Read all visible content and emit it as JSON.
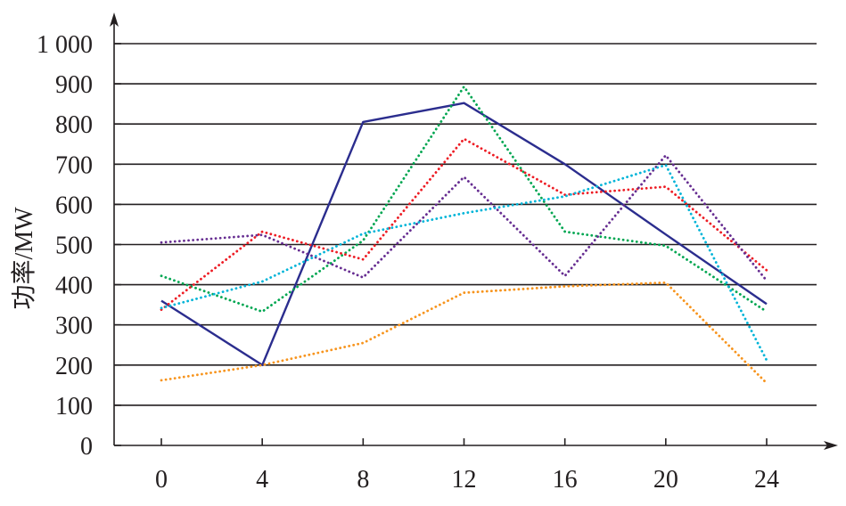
{
  "chart_data": {
    "type": "line",
    "title": "",
    "xlabel": "",
    "ylabel": "功率/MW",
    "x": [
      0,
      4,
      8,
      12,
      16,
      20,
      24
    ],
    "xlim": [
      0,
      24
    ],
    "ylim": [
      0,
      1000
    ],
    "x_ticks": [
      0,
      4,
      8,
      12,
      16,
      20,
      24
    ],
    "x_tick_labels": [
      "0",
      "4",
      "8",
      "12",
      "16",
      "20",
      "24"
    ],
    "y_ticks": [
      0,
      100,
      200,
      300,
      400,
      500,
      600,
      700,
      800,
      900,
      1000
    ],
    "y_tick_labels": [
      "0",
      "100",
      "200",
      "300",
      "400",
      "500",
      "600",
      "700",
      "800",
      "900",
      "1 000"
    ],
    "grid": "horizontal",
    "legend": "none",
    "series": [
      {
        "color": "#2b2d8e",
        "style": "solid",
        "values": [
          360,
          200,
          805,
          852,
          700,
          525,
          352
        ]
      },
      {
        "color": "#00a651",
        "style": "dotted",
        "values": [
          422,
          333,
          510,
          893,
          532,
          497,
          333
        ]
      },
      {
        "color": "#ed1c24",
        "style": "dotted",
        "values": [
          338,
          532,
          463,
          763,
          624,
          644,
          436
        ]
      },
      {
        "color": "#662d91",
        "style": "dotted",
        "values": [
          505,
          524,
          418,
          668,
          422,
          722,
          410
        ]
      },
      {
        "color": "#00b4d8",
        "style": "dotted",
        "values": [
          342,
          408,
          527,
          578,
          620,
          698,
          212
        ]
      },
      {
        "color": "#f7941d",
        "style": "dotted",
        "values": [
          162,
          200,
          255,
          380,
          396,
          405,
          155
        ]
      }
    ]
  }
}
